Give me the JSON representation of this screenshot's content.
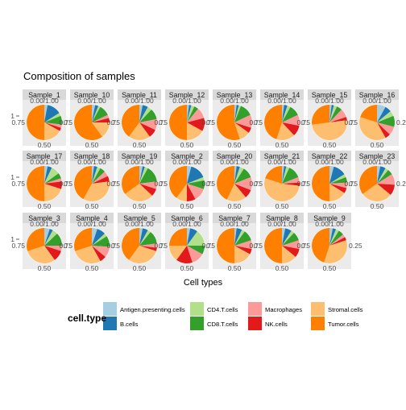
{
  "chart_data": {
    "type": "pie",
    "title": "Composition of samples",
    "xlabel": "Cell types",
    "y_tick": "1",
    "angle_ticks": [
      "0.00/1.00",
      "0.25",
      "0.50",
      "0.75"
    ],
    "legend": {
      "title": "cell.type",
      "entries": [
        {
          "name": "Antigen.presenting.cells",
          "color": "#A6CEE3"
        },
        {
          "name": "B.cells",
          "color": "#1F78B4"
        },
        {
          "name": "CD4.T.cells",
          "color": "#B2DF8A"
        },
        {
          "name": "CD8.T.cells",
          "color": "#33A02C"
        },
        {
          "name": "Macrophages",
          "color": "#FB9A99"
        },
        {
          "name": "NK.cells",
          "color": "#E31A1C"
        },
        {
          "name": "Stromal.cells",
          "color": "#FDBF6F"
        },
        {
          "name": "Tumor.cells",
          "color": "#FF7F00"
        }
      ]
    },
    "panels": [
      {
        "sample": "Sample_1",
        "values": [
          0.03,
          0.13,
          0.03,
          0.08,
          0.03,
          0.03,
          0.17,
          0.5
        ]
      },
      {
        "sample": "Sample_10",
        "values": [
          0.03,
          0.03,
          0.02,
          0.1,
          0.03,
          0.04,
          0.15,
          0.6
        ]
      },
      {
        "sample": "Sample_11",
        "values": [
          0.03,
          0.05,
          0.04,
          0.1,
          0.1,
          0.08,
          0.2,
          0.4
        ]
      },
      {
        "sample": "Sample_12",
        "values": [
          0.02,
          0.02,
          0.03,
          0.04,
          0.1,
          0.12,
          0.17,
          0.5
        ]
      },
      {
        "sample": "Sample_13",
        "values": [
          0.02,
          0.02,
          0.02,
          0.12,
          0.12,
          0.05,
          0.1,
          0.55
        ]
      },
      {
        "sample": "Sample_14",
        "values": [
          0.02,
          0.03,
          0.03,
          0.1,
          0.1,
          0.1,
          0.17,
          0.45
        ]
      },
      {
        "sample": "Sample_15",
        "values": [
          0.02,
          0.02,
          0.03,
          0.05,
          0.08,
          0.03,
          0.5,
          0.27
        ]
      },
      {
        "sample": "Sample_16",
        "values": [
          0.08,
          0.06,
          0.05,
          0.1,
          0.08,
          0.05,
          0.38,
          0.2
        ]
      },
      {
        "sample": "Sample_17",
        "values": [
          0.03,
          0.04,
          0.08,
          0.05,
          0.03,
          0.07,
          0.2,
          0.5
        ]
      },
      {
        "sample": "Sample_18",
        "values": [
          0.02,
          0.03,
          0.03,
          0.05,
          0.05,
          0.05,
          0.35,
          0.42
        ]
      },
      {
        "sample": "Sample_19",
        "values": [
          0.03,
          0.02,
          0.03,
          0.15,
          0.07,
          0.07,
          0.28,
          0.35
        ]
      },
      {
        "sample": "Sample_2",
        "values": [
          0.04,
          0.15,
          0.03,
          0.08,
          0.12,
          0.08,
          0.1,
          0.4
        ]
      },
      {
        "sample": "Sample_20",
        "values": [
          0.02,
          0.03,
          0.04,
          0.1,
          0.12,
          0.08,
          0.18,
          0.43
        ]
      },
      {
        "sample": "Sample_21",
        "values": [
          0.02,
          0.02,
          0.03,
          0.12,
          0.05,
          0.03,
          0.53,
          0.2
        ]
      },
      {
        "sample": "Sample_22",
        "values": [
          0.04,
          0.12,
          0.03,
          0.05,
          0.05,
          0.05,
          0.16,
          0.5
        ]
      },
      {
        "sample": "Sample_23",
        "values": [
          0.03,
          0.05,
          0.03,
          0.05,
          0.1,
          0.1,
          0.29,
          0.35
        ]
      },
      {
        "sample": "Sample_3",
        "values": [
          0.05,
          0.03,
          0.05,
          0.12,
          0.05,
          0.1,
          0.3,
          0.3
        ]
      },
      {
        "sample": "Sample_4",
        "values": [
          0.05,
          0.08,
          0.03,
          0.1,
          0.1,
          0.06,
          0.28,
          0.3
        ]
      },
      {
        "sample": "Sample_5",
        "values": [
          0.03,
          0.05,
          0.03,
          0.12,
          0.04,
          0.03,
          0.3,
          0.4
        ]
      },
      {
        "sample": "Sample_6",
        "values": [
          0.03,
          0.07,
          0.15,
          0.08,
          0.12,
          0.15,
          0.15,
          0.25
        ]
      },
      {
        "sample": "Sample_7",
        "values": [
          0.02,
          0.05,
          0.03,
          0.1,
          0.08,
          0.05,
          0.17,
          0.5
        ]
      },
      {
        "sample": "Sample_8",
        "values": [
          0.03,
          0.06,
          0.03,
          0.08,
          0.08,
          0.08,
          0.14,
          0.5
        ]
      },
      {
        "sample": "Sample_9",
        "values": [
          0.03,
          0.03,
          0.03,
          0.05,
          0.03,
          0.03,
          0.35,
          0.45
        ]
      }
    ]
  }
}
